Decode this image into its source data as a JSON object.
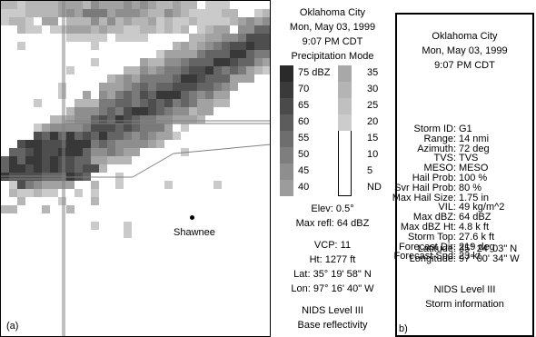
{
  "left_panel": {
    "tag": "(a)",
    "city": "Shawnee"
  },
  "info": {
    "location": "Oklahoma City",
    "date": "Mon, May 03, 1999",
    "time": "9:07 PM CDT",
    "mode": "Precipitation Mode",
    "legend_left": [
      {
        "label": "75 dBZ",
        "color": "#2a2a2a"
      },
      {
        "label": "70",
        "color": "#3a3a3a"
      },
      {
        "label": "65",
        "color": "#4a4a4a"
      },
      {
        "label": "60",
        "color": "#5c5c5c"
      },
      {
        "label": "55",
        "color": "#6e6e6e"
      },
      {
        "label": "50",
        "color": "#7e7e7e"
      },
      {
        "label": "45",
        "color": "#8e8e8e"
      },
      {
        "label": "40",
        "color": "#9c9c9c"
      }
    ],
    "legend_right": [
      {
        "label": "35",
        "color": "#a8a8a8"
      },
      {
        "label": "30",
        "color": "#b4b4b4"
      },
      {
        "label": "25",
        "color": "#c0c0c0"
      },
      {
        "label": "20",
        "color": "#cccccc"
      },
      {
        "label": "15",
        "color": "#ffffff"
      },
      {
        "label": "10",
        "color": "#ffffff"
      },
      {
        "label": "5",
        "color": "#ffffff"
      },
      {
        "label": "ND",
        "color": "#ffffff"
      }
    ],
    "elev": "Elev: 0.5°",
    "max_refl": "Max refl: 64 dBZ",
    "vcp": "VCP: 11",
    "ht": "Ht: 1277 ft",
    "lat": "Lat: 35° 19' 58\" N",
    "lon": "Lon: 97° 16' 40\" W",
    "product_level": "NIDS Level III",
    "product_name": "Base reflectivity"
  },
  "storm": {
    "location": "Oklahoma City",
    "date": "Mon, May 03, 1999",
    "time": "9:07 PM CDT",
    "fields": [
      {
        "key": "Storm ID:",
        "value": "G1"
      },
      {
        "key": "Range:",
        "value": "14 nmi"
      },
      {
        "key": "Azimuth:",
        "value": "72 deg"
      },
      {
        "key": "TVS:",
        "value": "TVS"
      },
      {
        "key": "MESO:",
        "value": "MESO"
      },
      {
        "key": "Hail Prob:",
        "value": "100 %"
      },
      {
        "key": "Svr Hail Prob:",
        "value": "80 %"
      },
      {
        "key": "Max Hail Size:",
        "value": "1.75 in"
      },
      {
        "key": "VIL:",
        "value": "49 kg/m^2"
      },
      {
        "key": "Max dBZ:",
        "value": "64 dBZ"
      },
      {
        "key": "Max dBZ Ht:",
        "value": "4.8 k ft"
      },
      {
        "key": "Storm Top:",
        "value": "27.6 k ft"
      },
      {
        "key": "Forecast Dir:",
        "value": "219 deg"
      },
      {
        "key": "Forecast Spd:",
        "value": "23 kt"
      }
    ],
    "latitude": {
      "key": "Latitude:",
      "value": "35° 24' 03\" N"
    },
    "longitude": {
      "key": "Longitude:",
      "value": "97° 00' 34\" W"
    },
    "product_level": "NIDS Level III",
    "product_name": "Storm information",
    "tag": "b)"
  }
}
